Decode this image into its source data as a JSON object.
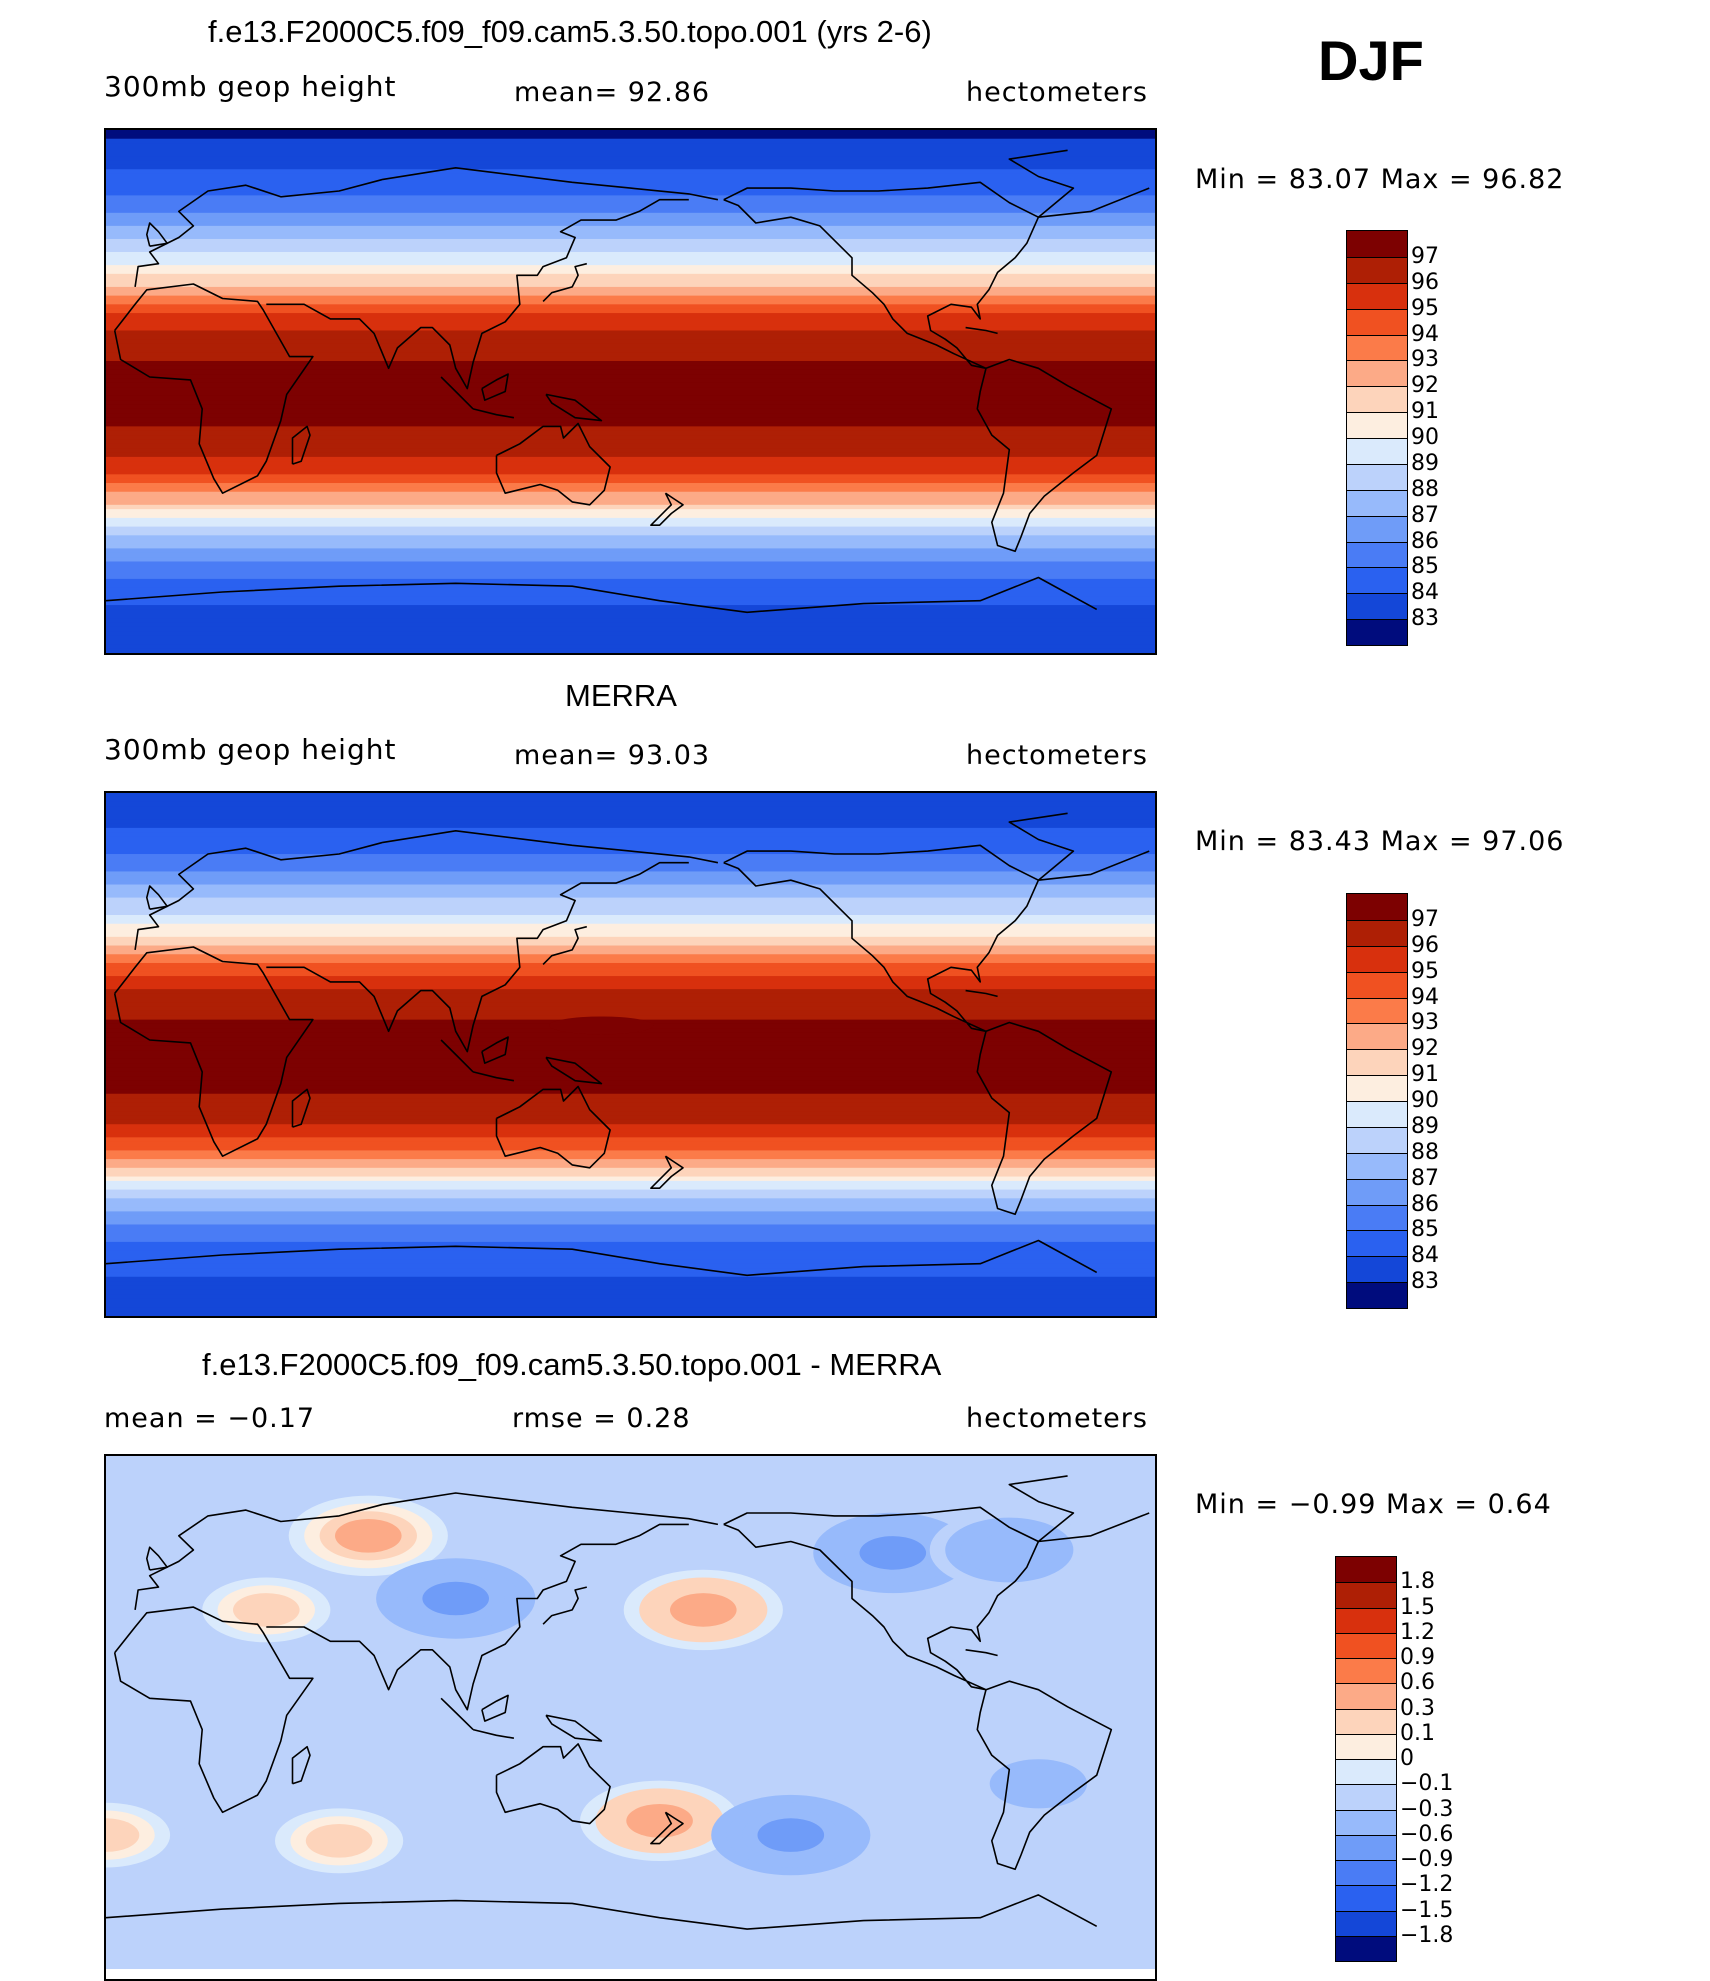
{
  "season": "DJF",
  "colors": {
    "ramp": [
      "#000c7d",
      "#0a22b5",
      "#1447d8",
      "#2a61f0",
      "#4a7cf5",
      "#6f9cf8",
      "#97bafb",
      "#bcd2fb",
      "#daeafc",
      "#fdeee0",
      "#fdd4bb",
      "#fcaa87",
      "#fb7b49",
      "#f05121",
      "#d8300d",
      "#ae1f05",
      "#7d0101"
    ],
    "land": "none",
    "outline": "#000000"
  },
  "panels": [
    {
      "id": "model",
      "title": "f.e13.F2000C5.f09_f09.cam5.3.50.topo.001 (yrs 2-6)",
      "variable": "300mb  geop  height",
      "stat_text": "mean=   92.86",
      "units": "hectometers",
      "minmax": "Min  =    83.07  Max  =    96.82",
      "colorbar": {
        "levels": [
          "97",
          "96",
          "95",
          "94",
          "93",
          "92",
          "91",
          "90",
          "89",
          "88",
          "87",
          "86",
          "85",
          "84",
          "83"
        ],
        "colors": [
          "#7d0101",
          "#ae1f05",
          "#d8300d",
          "#f05121",
          "#fb7b49",
          "#fcaa87",
          "#fdd4bb",
          "#fdeee0",
          "#daeafc",
          "#bcd2fb",
          "#97bafb",
          "#6f9cf8",
          "#4a7cf5",
          "#2a61f0",
          "#1447d8",
          "#000c7d"
        ]
      },
      "field": {
        "type": "zonal_bands",
        "range": [
          83,
          97
        ],
        "value_by_latitude": [
          [
            90,
            83.2
          ],
          [
            80,
            84.0
          ],
          [
            70,
            85.0
          ],
          [
            60,
            86.6
          ],
          [
            50,
            88.6
          ],
          [
            42,
            90.3
          ],
          [
            35,
            92.3
          ],
          [
            28,
            94.4
          ],
          [
            20,
            95.9
          ],
          [
            10,
            96.6
          ],
          [
            0,
            96.7
          ],
          [
            -10,
            96.6
          ],
          [
            -20,
            96.1
          ],
          [
            -30,
            94.3
          ],
          [
            -38,
            92.0
          ],
          [
            -45,
            89.5
          ],
          [
            -52,
            87.5
          ],
          [
            -60,
            85.8
          ],
          [
            -70,
            84.6
          ],
          [
            -80,
            84.1
          ],
          [
            -90,
            83.9
          ]
        ]
      }
    },
    {
      "id": "obs",
      "title": "MERRA",
      "variable": "300mb  geop  height",
      "stat_text": "mean=   93.03",
      "units": "hectometers",
      "minmax": "Min  =    83.43  Max  =    97.06",
      "colorbar": {
        "levels": [
          "97",
          "96",
          "95",
          "94",
          "93",
          "92",
          "91",
          "90",
          "89",
          "88",
          "87",
          "86",
          "85",
          "84",
          "83"
        ],
        "colors": [
          "#7d0101",
          "#ae1f05",
          "#d8300d",
          "#f05121",
          "#fb7b49",
          "#fcaa87",
          "#fdd4bb",
          "#fdeee0",
          "#daeafc",
          "#bcd2fb",
          "#97bafb",
          "#6f9cf8",
          "#4a7cf5",
          "#2a61f0",
          "#1447d8",
          "#000c7d"
        ]
      },
      "field": {
        "type": "zonal_bands",
        "range": [
          83,
          97
        ],
        "value_by_latitude": [
          [
            90,
            83.5
          ],
          [
            80,
            84.2
          ],
          [
            70,
            85.2
          ],
          [
            60,
            86.8
          ],
          [
            50,
            88.8
          ],
          [
            42,
            90.5
          ],
          [
            35,
            92.5
          ],
          [
            28,
            94.6
          ],
          [
            20,
            96.0
          ],
          [
            10,
            96.7
          ],
          [
            0,
            96.8
          ],
          [
            -10,
            96.7
          ],
          [
            -20,
            96.2
          ],
          [
            -30,
            94.4
          ],
          [
            -38,
            92.1
          ],
          [
            -45,
            89.6
          ],
          [
            -52,
            87.6
          ],
          [
            -60,
            85.9
          ],
          [
            -70,
            84.7
          ],
          [
            -80,
            84.2
          ],
          [
            -90,
            84.0
          ]
        ]
      }
    },
    {
      "id": "diff",
      "title": "f.e13.F2000C5.f09_f09.cam5.3.50.topo.001 - MERRA",
      "stat_text": "mean  =    −0.17",
      "stat_text_2": "rmse  =     0.28",
      "units": "hectometers",
      "minmax": "Min  =    −0.99  Max  =      0.64",
      "colorbar": {
        "levels": [
          "1.8",
          "1.5",
          "1.2",
          "0.9",
          "0.6",
          "0.3",
          "0.1",
          "0",
          "−0.1",
          "−0.3",
          "−0.6",
          "−0.9",
          "−1.2",
          "−1.5",
          "−1.8"
        ],
        "colors": [
          "#7d0101",
          "#ae1f05",
          "#d8300d",
          "#f05121",
          "#fb7b49",
          "#fcaa87",
          "#fdd4bb",
          "#fdeee0",
          "#daeafc",
          "#bcd2fb",
          "#97bafb",
          "#6f9cf8",
          "#4a7cf5",
          "#2a61f0",
          "#1447d8",
          "#000c7d"
        ]
      },
      "field": {
        "type": "blobs",
        "background": -0.2,
        "anomalies": [
          {
            "lon": 70,
            "lat": 62,
            "value": 0.35
          },
          {
            "lon": 35,
            "lat": 36,
            "value": 0.15
          },
          {
            "lon": 100,
            "lat": 40,
            "value": -0.6
          },
          {
            "lon": 185,
            "lat": 36,
            "value": 0.4
          },
          {
            "lon": 250,
            "lat": 56,
            "value": -0.65
          },
          {
            "lon": 290,
            "lat": 57,
            "value": -0.55
          },
          {
            "lon": 170,
            "lat": -38,
            "value": 0.45
          },
          {
            "lon": 215,
            "lat": -43,
            "value": -0.7
          },
          {
            "lon": 300,
            "lat": -25,
            "value": -0.35
          },
          {
            "lon": 60,
            "lat": -45,
            "value": 0.15
          },
          {
            "lon": 340,
            "lat": -43,
            "value": 0.15
          }
        ]
      }
    }
  ]
}
